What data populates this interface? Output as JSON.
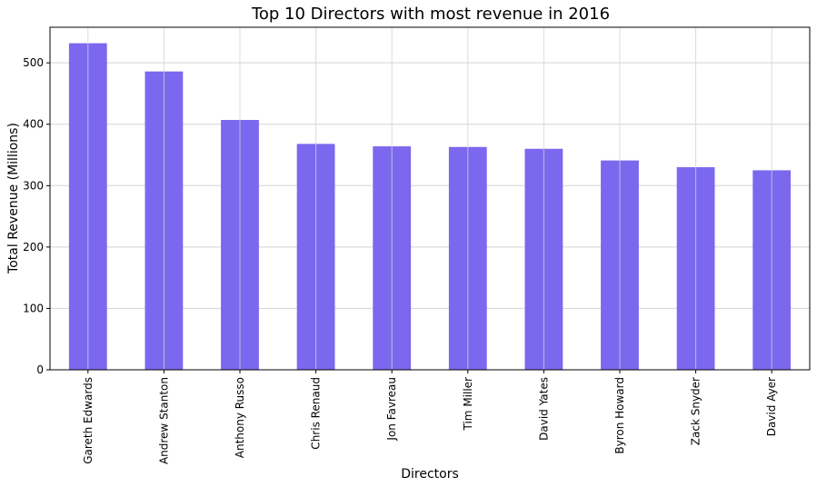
{
  "chart_data": {
    "type": "bar",
    "title": "Top 10 Directors with most revenue in 2016",
    "xlabel": "Directors",
    "ylabel": "Total Revenue (Millions)",
    "categories": [
      "Gareth Edwards",
      "Andrew Stanton",
      "Anthony Russo",
      "Chris Renaud",
      "Jon Favreau",
      "Tim Miller",
      "David Yates",
      "Byron Howard",
      "Zack Snyder",
      "David Ayer"
    ],
    "values": [
      532,
      486,
      407,
      368,
      364,
      363,
      360,
      341,
      330,
      325
    ],
    "yticks": [
      "0",
      "100",
      "200",
      "300",
      "400",
      "500"
    ],
    "ylim": [
      0,
      558
    ],
    "grid": true,
    "legend": "none",
    "bar_color": "#7b68ee"
  }
}
